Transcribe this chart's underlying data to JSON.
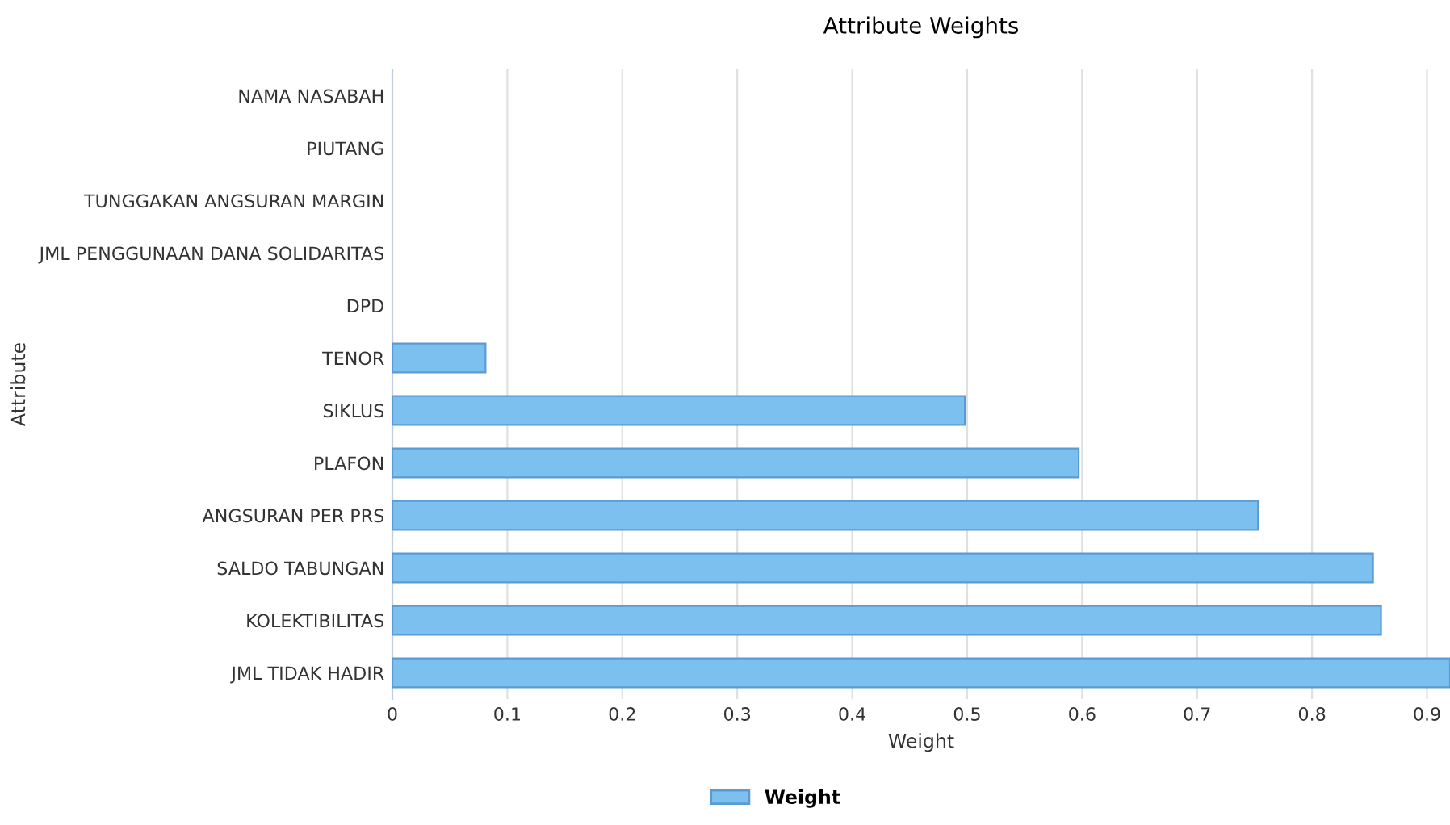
{
  "chart_data": {
    "type": "bar",
    "orientation": "horizontal",
    "title": "Attribute Weights",
    "xlabel": "Weight",
    "ylabel": "Attribute",
    "categories": [
      "NAMA NASABAH",
      "PIUTANG",
      "TUNGGAKAN ANGSURAN MARGIN",
      "JML PENGGUNAAN DANA SOLIDARITAS",
      "DPD",
      "TENOR",
      "SIKLUS",
      "PLAFON",
      "ANGSURAN PER PRS",
      "SALDO TABUNGAN",
      "KOLEKTIBILITAS",
      "JML TIDAK HADIR"
    ],
    "series": [
      {
        "name": "Weight",
        "color": "#7cc0ef",
        "values": [
          0,
          0,
          0,
          0,
          0,
          0.081,
          0.498,
          0.597,
          0.753,
          0.853,
          0.86,
          0.92
        ]
      }
    ],
    "xlim": [
      0,
      0.92
    ],
    "xticks": [
      0,
      0.1,
      0.2,
      0.3,
      0.4,
      0.5,
      0.6,
      0.7,
      0.8,
      0.9
    ],
    "grid": "x",
    "legend": "bottom"
  }
}
